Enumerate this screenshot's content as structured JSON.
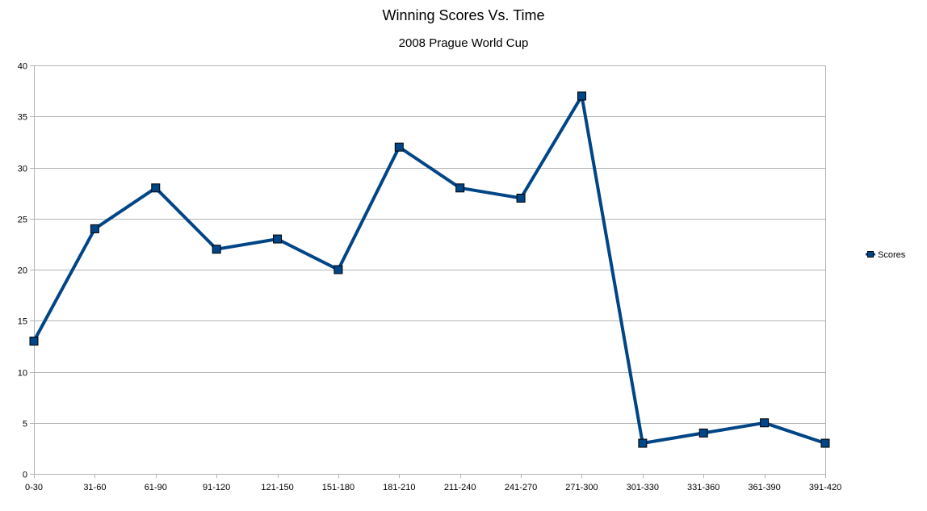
{
  "chart_data": {
    "type": "line",
    "title": "Winning Scores Vs. Time",
    "subtitle": "2008 Prague World Cup",
    "xlabel": "",
    "ylabel": "",
    "categories": [
      "0-30",
      "31-60",
      "61-90",
      "91-120",
      "121-150",
      "151-180",
      "181-210",
      "211-240",
      "241-270",
      "271-300",
      "301-330",
      "331-360",
      "361-390",
      "391-420"
    ],
    "series": [
      {
        "name": "Scores",
        "values": [
          13,
          24,
          28,
          22,
          23,
          20,
          32,
          28,
          27,
          37,
          3,
          4,
          5,
          3
        ],
        "color": "#004586"
      }
    ],
    "ylim": [
      0,
      40
    ],
    "yticks": [
      0,
      5,
      10,
      15,
      20,
      25,
      30,
      35,
      40
    ],
    "grid": true,
    "legend_position": "right",
    "colors": {
      "line": "#004586",
      "marker_fill": "#004586",
      "marker_stroke": "#000000",
      "grid": "#b3b3b3",
      "axis": "#b3b3b3"
    }
  }
}
